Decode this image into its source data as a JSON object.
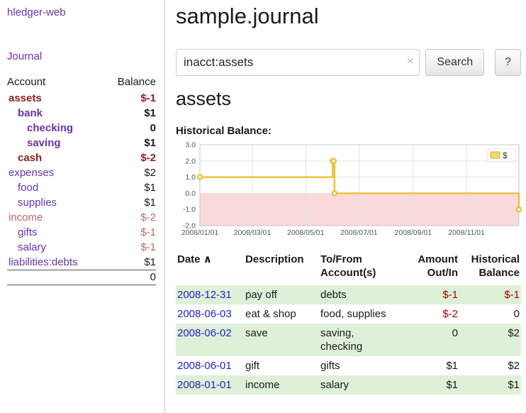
{
  "app": {
    "brand": "hledger-web",
    "nav": {
      "journal": "Journal"
    }
  },
  "sidebar": {
    "header": {
      "account": "Account",
      "balance": "Balance"
    },
    "accounts": [
      {
        "name": "assets",
        "balance": "$-1",
        "indent": 1,
        "bold": true,
        "name_color": "darkred",
        "balance_color": "darkred"
      },
      {
        "name": "bank",
        "balance": "$1",
        "indent": 2,
        "bold": true,
        "name_color": "purple",
        "balance_color": "black"
      },
      {
        "name": "checking",
        "balance": "0",
        "indent": 3,
        "bold": true,
        "name_color": "purple",
        "balance_color": "black"
      },
      {
        "name": "saving",
        "balance": "$1",
        "indent": 3,
        "bold": true,
        "name_color": "purple",
        "balance_color": "black"
      },
      {
        "name": "cash",
        "balance": "$-2",
        "indent": 2,
        "bold": true,
        "name_color": "darkred",
        "balance_color": "darkred"
      },
      {
        "name": "expenses",
        "balance": "$2",
        "indent": 1,
        "bold": false,
        "name_color": "purple",
        "balance_color": "black"
      },
      {
        "name": "food",
        "balance": "$1",
        "indent": 2,
        "bold": false,
        "name_color": "purple",
        "balance_color": "black"
      },
      {
        "name": "supplies",
        "balance": "$1",
        "indent": 2,
        "bold": false,
        "name_color": "purple",
        "balance_color": "black"
      },
      {
        "name": "income",
        "balance": "$-2",
        "indent": 1,
        "bold": false,
        "name_color": "rose",
        "balance_color": "rose"
      },
      {
        "name": "gifts",
        "balance": "$-1",
        "indent": 2,
        "bold": false,
        "name_color": "purple",
        "balance_color": "rose"
      },
      {
        "name": "salary",
        "balance": "$-1",
        "indent": 2,
        "bold": false,
        "name_color": "purple",
        "balance_color": "rose"
      },
      {
        "name": "liabilities:debts",
        "balance": "$1",
        "indent": 1,
        "bold": false,
        "name_color": "purple",
        "balance_color": "black"
      }
    ],
    "total": "0"
  },
  "main": {
    "title": "sample.journal",
    "search": {
      "value": "inacct:assets",
      "clear_icon": "×",
      "button_label": "Search",
      "help_label": "?"
    },
    "account_heading": "assets",
    "chart_title": "Historical Balance:",
    "register": {
      "columns": {
        "date": "Date",
        "sort_icon": "∧",
        "description": "Description",
        "accounts_line1": "To/From",
        "accounts_line2": "Account(s)",
        "amount_line1": "Amount",
        "amount_line2": "Out/In",
        "balance_line1": "Historical",
        "balance_line2": "Balance"
      },
      "rows": [
        {
          "date": "2008-12-31",
          "description": "pay off",
          "accounts": "debts",
          "amount": "$-1",
          "amount_negative": true,
          "balance": "$-1",
          "balance_negative": true
        },
        {
          "date": "2008-06-03",
          "description": "eat & shop",
          "accounts": "food, supplies",
          "amount": "$-2",
          "amount_negative": true,
          "balance": "0",
          "balance_negative": false
        },
        {
          "date": "2008-06-02",
          "description": "save",
          "accounts": "saving, checking",
          "amount": "0",
          "amount_negative": false,
          "balance": "$2",
          "balance_negative": false
        },
        {
          "date": "2008-06-01",
          "description": "gift",
          "accounts": "gifts",
          "amount": "$1",
          "amount_negative": false,
          "balance": "$2",
          "balance_negative": false
        },
        {
          "date": "2008-01-01",
          "description": "income",
          "accounts": "salary",
          "amount": "$1",
          "amount_negative": false,
          "balance": "$1",
          "balance_negative": false
        }
      ]
    }
  },
  "chart_data": {
    "type": "line",
    "step": true,
    "title": "Historical Balance",
    "series": [
      {
        "name": "$",
        "x": [
          "2008-01-01",
          "2008-06-01",
          "2008-06-02",
          "2008-06-03",
          "2008-12-31"
        ],
        "values": [
          1,
          2,
          2,
          0,
          -1
        ],
        "color": "#edc240"
      }
    ],
    "xlim": [
      "2008-01-01",
      "2008-12-31"
    ],
    "ylim": [
      -2,
      3
    ],
    "yticks": [
      3.0,
      2.0,
      1.0,
      0.0,
      -1.0,
      -2.0
    ],
    "ytick_labels": [
      "3.0",
      "2.0",
      "1.0",
      "0.0",
      "-1.0",
      "-2.0"
    ],
    "xticks": [
      "2008-01-01",
      "2008-03-01",
      "2008-05-01",
      "2008-07-01",
      "2008-09-01",
      "2008-11-01"
    ],
    "xtick_labels": [
      "2008/01/01",
      "2008/03/01",
      "2008/05/01",
      "2008/07/01",
      "2008/09/01",
      "2008/11/01"
    ],
    "legend": {
      "label": "$",
      "position": "top-right"
    },
    "grid": true,
    "line_color": "#edc240",
    "negative_region_color": "#f9d9d9"
  }
}
